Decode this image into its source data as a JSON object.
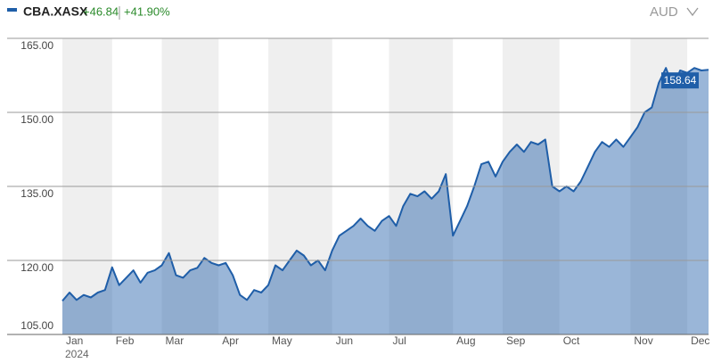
{
  "chart_data": {
    "type": "area",
    "ticker": "CBA.XASX",
    "change": "+46.84",
    "change_pct": "+41.90%",
    "currency": "AUD",
    "year": "2024",
    "categories": [
      "Jan",
      null,
      null,
      null,
      null,
      null,
      null,
      "Feb",
      null,
      null,
      null,
      null,
      null,
      null,
      "Mar",
      null,
      null,
      null,
      null,
      null,
      null,
      null,
      "Apr",
      null,
      null,
      null,
      null,
      null,
      null,
      "May",
      null,
      null,
      null,
      null,
      null,
      null,
      null,
      null,
      "Jun",
      null,
      null,
      null,
      null,
      null,
      null,
      null,
      "Jul",
      null,
      null,
      null,
      null,
      null,
      null,
      null,
      null,
      "Aug",
      null,
      null,
      null,
      null,
      null,
      null,
      "Sep",
      null,
      null,
      null,
      null,
      null,
      null,
      null,
      "Oct",
      null,
      null,
      null,
      null,
      null,
      null,
      null,
      null,
      null,
      "Nov",
      null,
      null,
      null,
      null,
      null,
      null,
      null,
      "Dec",
      null,
      null,
      null
    ],
    "series": [
      {
        "name": "CBA.XASX",
        "color": "#1f5ea8",
        "values": [
          111.8,
          113.5,
          112,
          113,
          112.5,
          113.5,
          114,
          118.6,
          115,
          116.5,
          118,
          115.5,
          117.5,
          118,
          119,
          121.5,
          117,
          116.5,
          118,
          118.5,
          120.5,
          119.5,
          119,
          119.5,
          117,
          113,
          112,
          114,
          113.5,
          115,
          119,
          118,
          120,
          122,
          121,
          119,
          120,
          118,
          122,
          125,
          126,
          127,
          128.5,
          127,
          126,
          128,
          129,
          127,
          131,
          133.5,
          133,
          134,
          132.5,
          134,
          137.5,
          125,
          128,
          131,
          135,
          139.5,
          140,
          137,
          140,
          142,
          143.5,
          142,
          144,
          143.5,
          144.5,
          135,
          134,
          135,
          134,
          136,
          139,
          142,
          144,
          143,
          144.5,
          143,
          145,
          147,
          150,
          151,
          156,
          159,
          155,
          158.5,
          158,
          159,
          158.5,
          158.64
        ]
      }
    ],
    "ylim": [
      105,
      165
    ],
    "yticks": [
      {
        "value": 105,
        "label": "105.00"
      },
      {
        "value": 120,
        "label": "120.00"
      },
      {
        "value": 135,
        "label": "135.00"
      },
      {
        "value": 150,
        "label": "150.00"
      },
      {
        "value": 165,
        "label": "165.00"
      }
    ],
    "grid": true,
    "band_color": "#efefef"
  }
}
